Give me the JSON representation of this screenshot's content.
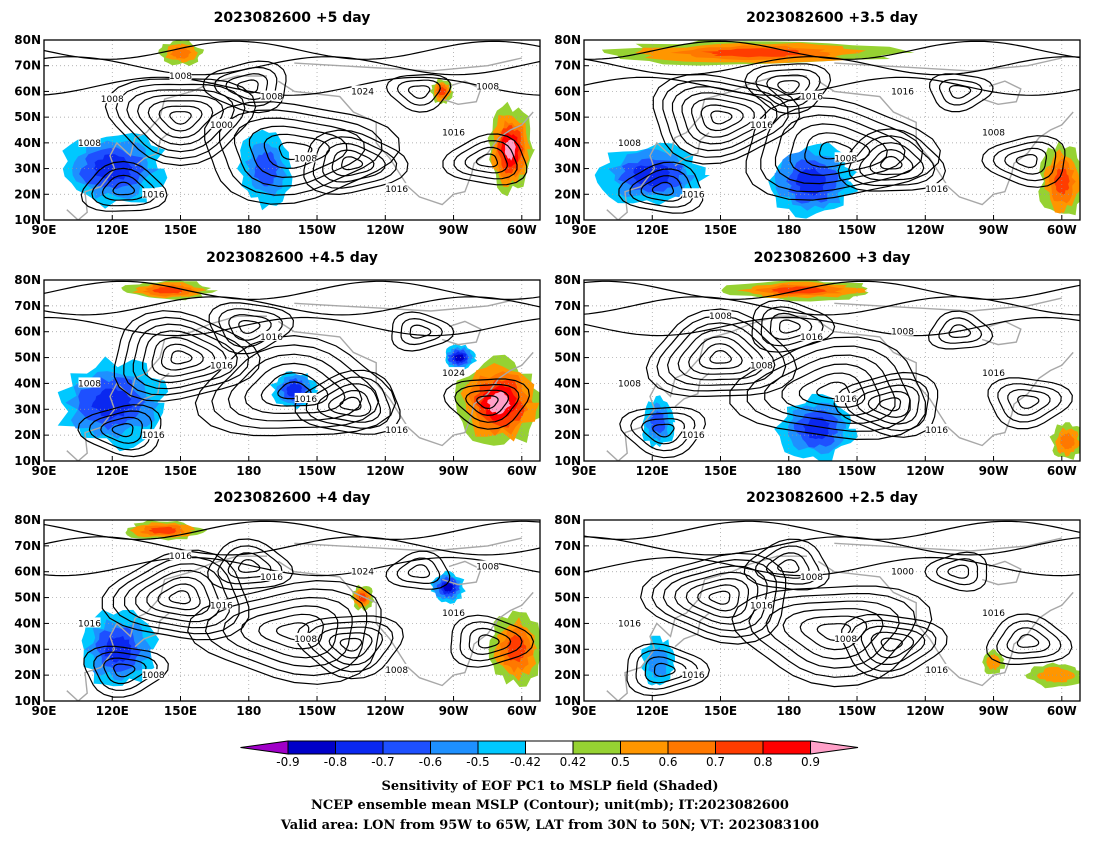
{
  "chart_data": [
    {
      "type": "heatmap",
      "title": "2023082600 +5 day",
      "xlabel": "",
      "ylabel": "",
      "x_ticks": [
        "90E",
        "120E",
        "150E",
        "180",
        "150W",
        "120W",
        "90W",
        "60W"
      ],
      "y_ticks": [
        "10N",
        "20N",
        "30N",
        "40N",
        "50N",
        "60N",
        "70N",
        "80N"
      ],
      "contour_labels": [
        "1000",
        "1008",
        "1008",
        "1016",
        "1016",
        "1016",
        "1008",
        "1024",
        "1008",
        "1008",
        "1008"
      ],
      "positive_regions": [
        {
          "region": "eastern North America / western Atlantic",
          "lon": "75W-55W",
          "lat": "20N-55N",
          "max": 0.9
        },
        {
          "region": "Canada",
          "lon": "100W-90W",
          "lat": "55N-65N",
          "max": 0.7
        },
        {
          "region": "Arctic near 150E",
          "lon": "140E-160E",
          "lat": "70N-80N",
          "max": 0.6
        }
      ],
      "negative_regions": [
        {
          "region": "East Asia",
          "lon": "95E-145E",
          "lat": "15N-45N",
          "min": -0.7
        },
        {
          "region": "central North Pacific",
          "lon": "175E-160W",
          "lat": "15N-45N",
          "min": -0.6
        }
      ]
    },
    {
      "type": "heatmap",
      "title": "2023082600 +3.5 day",
      "xlabel": "",
      "ylabel": "",
      "x_ticks": [
        "90E",
        "120E",
        "150E",
        "180",
        "150W",
        "120W",
        "90W",
        "60W"
      ],
      "y_ticks": [
        "10N",
        "20N",
        "30N",
        "40N",
        "50N",
        "60N",
        "70N",
        "80N"
      ],
      "contour_labels": [
        "1016",
        "1008",
        "1008",
        "1016",
        "1016",
        "1008",
        "1016",
        "1016"
      ],
      "positive_regions": [
        {
          "region": "western Atlantic",
          "lon": "70W-50W",
          "lat": "10N-40N",
          "max": 0.7
        },
        {
          "region": "Arctic band",
          "lon": "100E-130W",
          "lat": "70N-80N",
          "max": 0.7
        }
      ],
      "negative_regions": [
        {
          "region": "East Asia",
          "lon": "95E-145E",
          "lat": "15N-40N",
          "min": -0.7
        },
        {
          "region": "central Pacific",
          "lon": "170E-150W",
          "lat": "10N-40N",
          "min": -0.7
        }
      ]
    },
    {
      "type": "heatmap",
      "title": "2023082600 +4.5 day",
      "xlabel": "",
      "ylabel": "",
      "x_ticks": [
        "90E",
        "120E",
        "150E",
        "180",
        "150W",
        "120W",
        "90W",
        "60W"
      ],
      "y_ticks": [
        "10N",
        "20N",
        "30N",
        "40N",
        "50N",
        "60N",
        "70N",
        "80N"
      ],
      "contour_labels": [
        "1016",
        "1016",
        "1008",
        "1016",
        "1016",
        "1024",
        "1016"
      ],
      "positive_regions": [
        {
          "region": "eastern North America / western Atlantic",
          "lon": "90W-50W",
          "lat": "15N-50N",
          "max": 0.9
        },
        {
          "region": "Arctic near 150E",
          "lon": "125E-165E",
          "lat": "72N-80N",
          "max": 0.7
        }
      ],
      "negative_regions": [
        {
          "region": "East Asia",
          "lon": "95E-145E",
          "lat": "15N-50N",
          "min": -0.7
        },
        {
          "region": "central North Pacific",
          "lon": "170W-150W",
          "lat": "30N-45N",
          "min": -0.7
        },
        {
          "region": "Canada",
          "lon": "95W-80W",
          "lat": "45N-55N",
          "min": -0.8
        }
      ]
    },
    {
      "type": "heatmap",
      "title": "2023082600 +3 day",
      "xlabel": "",
      "ylabel": "",
      "x_ticks": [
        "90E",
        "120E",
        "150E",
        "180",
        "150W",
        "120W",
        "90W",
        "60W"
      ],
      "y_ticks": [
        "10N",
        "20N",
        "30N",
        "40N",
        "50N",
        "60N",
        "70N",
        "80N"
      ],
      "contour_labels": [
        "1008",
        "1016",
        "1008",
        "1016",
        "1016",
        "1016",
        "1016",
        "1008",
        "1008"
      ],
      "positive_regions": [
        {
          "region": "Arctic band",
          "lon": "150E-140W",
          "lat": "72N-80N",
          "max": 0.7
        },
        {
          "region": "western Atlantic",
          "lon": "65W-50W",
          "lat": "10N-25N",
          "max": 0.6
        }
      ],
      "negative_regions": [
        {
          "region": "central Pacific",
          "lon": "175E-150W",
          "lat": "10N-35N",
          "min": -0.7
        },
        {
          "region": "East Asia",
          "lon": "115E-130E",
          "lat": "15N-35N",
          "min": -0.6
        }
      ]
    },
    {
      "type": "heatmap",
      "title": "2023082600 +4 day",
      "xlabel": "",
      "ylabel": "",
      "x_ticks": [
        "90E",
        "120E",
        "150E",
        "180",
        "150W",
        "120W",
        "90W",
        "60W"
      ],
      "y_ticks": [
        "10N",
        "20N",
        "30N",
        "40N",
        "50N",
        "60N",
        "70N",
        "80N"
      ],
      "contour_labels": [
        "1016",
        "1008",
        "1016",
        "1008",
        "1008",
        "1016",
        "1016",
        "1024",
        "1016",
        "1008"
      ],
      "positive_regions": [
        {
          "region": "eastern North America / western Atlantic",
          "lon": "75W-50W",
          "lat": "15N-45N",
          "max": 0.7
        },
        {
          "region": "Arctic near 150E",
          "lon": "125E-160E",
          "lat": "72N-80N",
          "max": 0.7
        },
        {
          "region": "eastern Pacific",
          "lon": "135W-125W",
          "lat": "45N-55N",
          "max": 0.7
        }
      ],
      "negative_regions": [
        {
          "region": "East Asia",
          "lon": "105E-140E",
          "lat": "15N-45N",
          "min": -0.7
        },
        {
          "region": "Canada",
          "lon": "100W-85W",
          "lat": "48N-60N",
          "min": -0.8
        }
      ]
    },
    {
      "type": "heatmap",
      "title": "2023082600 +2.5 day",
      "xlabel": "",
      "ylabel": "",
      "x_ticks": [
        "90E",
        "120E",
        "150E",
        "180",
        "150W",
        "120W",
        "90W",
        "60W"
      ],
      "y_ticks": [
        "10N",
        "20N",
        "30N",
        "40N",
        "50N",
        "60N",
        "70N",
        "80N"
      ],
      "contour_labels": [
        "1016",
        "1008",
        "1016",
        "1016",
        "1016",
        "1016",
        "1008",
        "1000"
      ],
      "positive_regions": [
        {
          "region": "western Atlantic",
          "lon": "75W-50W",
          "lat": "15N-25N",
          "max": 0.5
        },
        {
          "region": "North America",
          "lon": "95W-85W",
          "lat": "20N-30N",
          "max": 0.5
        }
      ],
      "negative_regions": [
        {
          "region": "East Asia",
          "lon": "115E-130E",
          "lat": "15N-35N",
          "min": -0.5
        }
      ]
    }
  ],
  "colorbar": {
    "levels": [
      "-0.9",
      "-0.8",
      "-0.7",
      "-0.6",
      "-0.5",
      "-0.42",
      "0.42",
      "0.5",
      "0.6",
      "0.7",
      "0.8",
      "0.9"
    ],
    "colors": [
      "#a000c8",
      "#0000c8",
      "#0a28f0",
      "#1e50ff",
      "#1e90ff",
      "#00c8ff",
      "#ffffff",
      "#96d232",
      "#ff9600",
      "#ff7800",
      "#ff3c00",
      "#ff0000",
      "#ffa0c8"
    ]
  },
  "caption": {
    "line1": "Sensitivity of EOF PC1 to MSLP field (Shaded)",
    "line2": "NCEP ensemble mean MSLP (Contour); unit(mb); IT:2023082600",
    "line3": "Valid area: LON from 95W to 65W, LAT from 30N to 50N; VT: 2023083100"
  },
  "colors": {
    "contour": "#000000",
    "coastline": "#a8a8a8",
    "grid": "#9a9a9a"
  }
}
